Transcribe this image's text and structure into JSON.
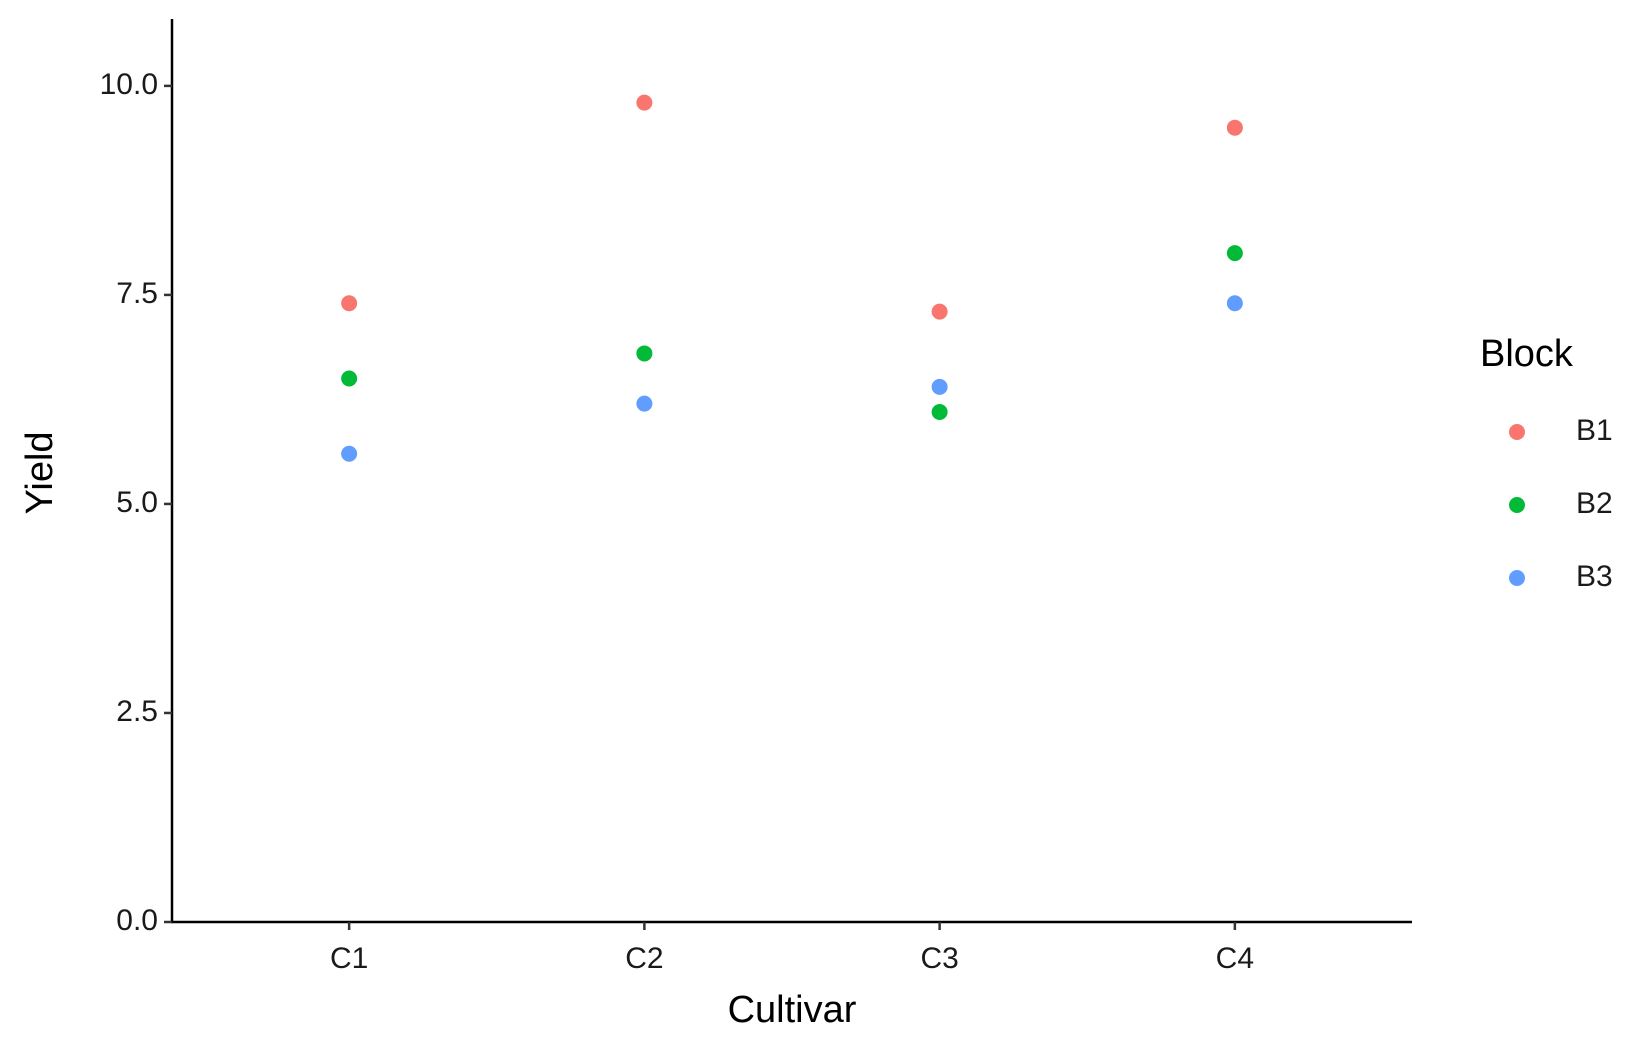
{
  "chart_data": {
    "type": "scatter",
    "x_label": "Cultivar",
    "y_label": "Yield",
    "categories": [
      "C1",
      "C2",
      "C3",
      "C4"
    ],
    "series": [
      {
        "name": "B1",
        "color": "#F8766D",
        "values": [
          7.4,
          9.8,
          7.3,
          9.5
        ]
      },
      {
        "name": "B2",
        "color": "#00BA38",
        "values": [
          6.5,
          6.8,
          6.1,
          8.0
        ]
      },
      {
        "name": "B3",
        "color": "#619CFF",
        "values": [
          5.6,
          6.2,
          6.4,
          7.4
        ]
      }
    ],
    "ylim": [
      0,
      10.8
    ],
    "yticks": [
      {
        "value": 0,
        "label": "0.0"
      },
      2.5,
      {
        "value": 5,
        "label": "5.0"
      },
      7.5,
      {
        "value": 10,
        "label": "10.0"
      }
    ],
    "legend_title": "Block",
    "legend_position": "right",
    "grid": false
  }
}
